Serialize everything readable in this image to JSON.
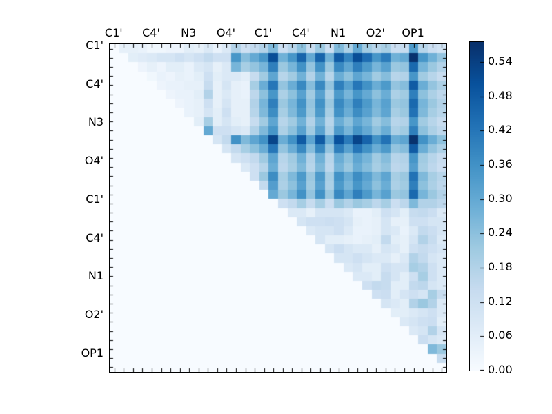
{
  "chart_data": {
    "type": "heatmap",
    "title": "",
    "n": 36,
    "x_tick_labels": [
      "C1'",
      "C4'",
      "N3",
      "O4'",
      "C1'",
      "C4'",
      "N1",
      "O2'",
      "OP1"
    ],
    "y_tick_labels": [
      "C1'",
      "C4'",
      "N3",
      "O4'",
      "C1'",
      "C4'",
      "N1",
      "O2'",
      "OP1"
    ],
    "label_every_n_cells": 4,
    "grid": false,
    "vmin": 0.0,
    "vmax": 0.575,
    "colormap": {
      "name": "Blues",
      "anchors": [
        "#f7fbff",
        "#deebf7",
        "#c6dbef",
        "#9ecae1",
        "#6baed6",
        "#4292c6",
        "#2171b5",
        "#08519c",
        "#08306b"
      ]
    },
    "colorbar": {
      "position": "right",
      "tick_labels": [
        "0.54",
        "0.48",
        "0.42",
        "0.36",
        "0.30",
        "0.24",
        "0.18",
        "0.12",
        "0.06",
        "0.00"
      ],
      "tick_values": [
        0.54,
        0.48,
        0.42,
        0.36,
        0.3,
        0.24,
        0.18,
        0.12,
        0.06,
        0.0
      ]
    },
    "matrix_storage": "upper_triangle_rows_starting_at_col_r_plus_1_lower_and_diagonal_zero",
    "matrix_upper_rows": [
      [
        0.05,
        0.05,
        0.04,
        0.02,
        0.02,
        0.03,
        0.03,
        0.06,
        0.05,
        0.08,
        0.04,
        0.08,
        0.18,
        0.12,
        0.15,
        0.18,
        0.26,
        0.13,
        0.17,
        0.24,
        0.14,
        0.22,
        0.13,
        0.26,
        0.19,
        0.3,
        0.21,
        0.17,
        0.2,
        0.13,
        0.14,
        0.34,
        0.17,
        0.13,
        0.11
      ],
      [
        0.06,
        0.07,
        0.08,
        0.1,
        0.1,
        0.12,
        0.1,
        0.12,
        0.15,
        0.12,
        0.12,
        0.35,
        0.25,
        0.3,
        0.35,
        0.51,
        0.28,
        0.35,
        0.46,
        0.3,
        0.46,
        0.28,
        0.48,
        0.39,
        0.51,
        0.44,
        0.35,
        0.41,
        0.28,
        0.3,
        0.57,
        0.35,
        0.28,
        0.23
      ],
      [
        0.03,
        0.05,
        0.03,
        0.06,
        0.06,
        0.04,
        0.08,
        0.1,
        0.05,
        0.08,
        0.27,
        0.2,
        0.23,
        0.27,
        0.4,
        0.22,
        0.27,
        0.36,
        0.23,
        0.36,
        0.22,
        0.38,
        0.31,
        0.4,
        0.34,
        0.27,
        0.32,
        0.22,
        0.23,
        0.45,
        0.27,
        0.22,
        0.18
      ],
      [
        0.02,
        0.04,
        0.03,
        0.05,
        0.04,
        0.06,
        0.12,
        0.06,
        0.08,
        0.08,
        0.06,
        0.14,
        0.21,
        0.31,
        0.17,
        0.21,
        0.28,
        0.18,
        0.28,
        0.17,
        0.29,
        0.24,
        0.31,
        0.27,
        0.21,
        0.25,
        0.17,
        0.18,
        0.35,
        0.21,
        0.17,
        0.14
      ],
      [
        0.03,
        0.04,
        0.04,
        0.05,
        0.05,
        0.14,
        0.05,
        0.1,
        0.05,
        0.04,
        0.2,
        0.29,
        0.42,
        0.23,
        0.29,
        0.38,
        0.25,
        0.38,
        0.23,
        0.4,
        0.32,
        0.42,
        0.36,
        0.29,
        0.34,
        0.23,
        0.25,
        0.48,
        0.29,
        0.23,
        0.19
      ],
      [
        0.03,
        0.04,
        0.04,
        0.06,
        0.18,
        0.05,
        0.08,
        0.05,
        0.04,
        0.16,
        0.24,
        0.35,
        0.19,
        0.24,
        0.32,
        0.21,
        0.32,
        0.19,
        0.34,
        0.27,
        0.35,
        0.3,
        0.24,
        0.29,
        0.19,
        0.21,
        0.4,
        0.24,
        0.19,
        0.16
      ],
      [
        0.03,
        0.04,
        0.05,
        0.12,
        0.05,
        0.1,
        0.05,
        0.05,
        0.18,
        0.27,
        0.4,
        0.22,
        0.27,
        0.36,
        0.23,
        0.36,
        0.22,
        0.38,
        0.31,
        0.4,
        0.34,
        0.27,
        0.32,
        0.22,
        0.23,
        0.45,
        0.27,
        0.22,
        0.18
      ],
      [
        0.04,
        0.05,
        0.1,
        0.06,
        0.12,
        0.05,
        0.05,
        0.17,
        0.26,
        0.37,
        0.2,
        0.26,
        0.34,
        0.22,
        0.34,
        0.2,
        0.36,
        0.29,
        0.37,
        0.32,
        0.26,
        0.31,
        0.2,
        0.22,
        0.43,
        0.26,
        0.2,
        0.17
      ],
      [
        0.06,
        0.2,
        0.06,
        0.1,
        0.06,
        0.05,
        0.14,
        0.21,
        0.31,
        0.17,
        0.21,
        0.28,
        0.18,
        0.28,
        0.17,
        0.29,
        0.24,
        0.31,
        0.27,
        0.21,
        0.25,
        0.17,
        0.18,
        0.35,
        0.21,
        0.17,
        0.14
      ],
      [
        0.3,
        0.12,
        0.12,
        0.1,
        0.08,
        0.18,
        0.26,
        0.35,
        0.19,
        0.24,
        0.32,
        0.21,
        0.32,
        0.19,
        0.34,
        0.27,
        0.35,
        0.3,
        0.24,
        0.29,
        0.19,
        0.21,
        0.4,
        0.24,
        0.19,
        0.16
      ],
      [
        0.1,
        0.15,
        0.36,
        0.26,
        0.31,
        0.36,
        0.53,
        0.29,
        0.36,
        0.48,
        0.31,
        0.48,
        0.29,
        0.5,
        0.41,
        0.53,
        0.46,
        0.36,
        0.43,
        0.29,
        0.31,
        0.57,
        0.36,
        0.29,
        0.24
      ],
      [
        0.1,
        0.15,
        0.2,
        0.24,
        0.29,
        0.42,
        0.23,
        0.29,
        0.38,
        0.25,
        0.38,
        0.23,
        0.4,
        0.32,
        0.42,
        0.36,
        0.29,
        0.34,
        0.23,
        0.25,
        0.48,
        0.29,
        0.23,
        0.19
      ],
      [
        0.1,
        0.12,
        0.15,
        0.21,
        0.31,
        0.17,
        0.21,
        0.28,
        0.18,
        0.28,
        0.17,
        0.29,
        0.24,
        0.31,
        0.27,
        0.21,
        0.25,
        0.17,
        0.18,
        0.35,
        0.21,
        0.17,
        0.14
      ],
      [
        0.08,
        0.12,
        0.17,
        0.29,
        0.16,
        0.2,
        0.26,
        0.17,
        0.26,
        0.16,
        0.27,
        0.22,
        0.29,
        0.25,
        0.2,
        0.23,
        0.16,
        0.17,
        0.33,
        0.2,
        0.16,
        0.13
      ],
      [
        0.12,
        0.22,
        0.37,
        0.2,
        0.26,
        0.34,
        0.22,
        0.34,
        0.2,
        0.36,
        0.29,
        0.37,
        0.32,
        0.26,
        0.31,
        0.2,
        0.22,
        0.43,
        0.26,
        0.2,
        0.17
      ],
      [
        0.15,
        0.33,
        0.19,
        0.24,
        0.32,
        0.21,
        0.32,
        0.19,
        0.34,
        0.27,
        0.35,
        0.3,
        0.24,
        0.29,
        0.19,
        0.21,
        0.4,
        0.24,
        0.19,
        0.16
      ],
      [
        0.3,
        0.22,
        0.27,
        0.36,
        0.23,
        0.36,
        0.22,
        0.38,
        0.31,
        0.4,
        0.34,
        0.27,
        0.32,
        0.22,
        0.23,
        0.45,
        0.27,
        0.22,
        0.18
      ],
      [
        0.12,
        0.15,
        0.2,
        0.14,
        0.2,
        0.13,
        0.22,
        0.18,
        0.22,
        0.2,
        0.16,
        0.2,
        0.13,
        0.16,
        0.26,
        0.18,
        0.18,
        0.16
      ],
      [
        0.08,
        0.08,
        0.05,
        0.1,
        0.1,
        0.1,
        0.08,
        0.04,
        0.04,
        0.06,
        0.12,
        0.1,
        0.06,
        0.14,
        0.15,
        0.13,
        0.08
      ],
      [
        0.1,
        0.12,
        0.12,
        0.13,
        0.12,
        0.1,
        0.05,
        0.04,
        0.05,
        0.1,
        0.05,
        0.05,
        0.12,
        0.12,
        0.1,
        0.1
      ],
      [
        0.08,
        0.1,
        0.1,
        0.12,
        0.08,
        0.04,
        0.04,
        0.05,
        0.1,
        0.08,
        0.04,
        0.08,
        0.15,
        0.13,
        0.1
      ],
      [
        0.1,
        0.06,
        0.06,
        0.05,
        0.04,
        0.05,
        0.06,
        0.15,
        0.06,
        0.05,
        0.1,
        0.18,
        0.14,
        0.08
      ],
      [
        0.1,
        0.13,
        0.1,
        0.08,
        0.08,
        0.05,
        0.1,
        0.08,
        0.05,
        0.12,
        0.14,
        0.12,
        0.1
      ],
      [
        0.1,
        0.1,
        0.12,
        0.1,
        0.08,
        0.08,
        0.05,
        0.08,
        0.18,
        0.15,
        0.1,
        0.08
      ],
      [
        0.08,
        0.1,
        0.06,
        0.06,
        0.12,
        0.1,
        0.1,
        0.2,
        0.18,
        0.12,
        0.08
      ],
      [
        0.08,
        0.08,
        0.06,
        0.14,
        0.1,
        0.06,
        0.12,
        0.2,
        0.12,
        0.08
      ],
      [
        0.12,
        0.15,
        0.14,
        0.06,
        0.06,
        0.15,
        0.16,
        0.1,
        0.08
      ],
      [
        0.12,
        0.13,
        0.06,
        0.1,
        0.12,
        0.1,
        0.2,
        0.14
      ],
      [
        0.1,
        0.08,
        0.06,
        0.18,
        0.22,
        0.18,
        0.08
      ],
      [
        0.06,
        0.06,
        0.08,
        0.1,
        0.12,
        0.08
      ],
      [
        0.08,
        0.1,
        0.12,
        0.13,
        0.06
      ],
      [
        0.08,
        0.1,
        0.18,
        0.1
      ],
      [
        0.13,
        0.1,
        0.08
      ],
      [
        0.26,
        0.22
      ],
      [
        0.14
      ],
      []
    ]
  }
}
